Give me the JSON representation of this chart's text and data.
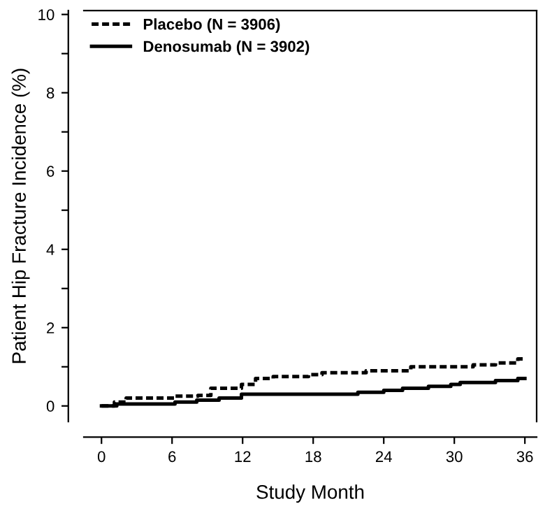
{
  "chart_data": {
    "type": "step",
    "xlabel": "Study Month",
    "ylabel": "Patient Hip Fracture Incidence (%)",
    "xlim": [
      -1.5,
      37
    ],
    "ylim": [
      -0.4,
      10.1
    ],
    "xticks": [
      0,
      6,
      12,
      18,
      24,
      30,
      36
    ],
    "yticks": [
      0,
      {
        "value": 1,
        "label": null
      },
      2,
      {
        "value": 3,
        "label": null
      },
      4,
      {
        "value": 5,
        "label": null
      },
      6,
      {
        "value": 7,
        "label": null
      },
      8,
      {
        "value": 9,
        "label": null
      },
      10
    ],
    "grid": false,
    "legend": "top left",
    "marker": "none",
    "series": [
      {
        "name": "Placebo (N = 3906)",
        "color": "#000000",
        "line_style": "dashed",
        "x": [
          0,
          1.1,
          2.1,
          6.25,
          8.2,
          9.3,
          11.9,
          13.1,
          14.6,
          17.6,
          18.75,
          22.5,
          26.3,
          31.6,
          33.5,
          35.4,
          36
        ],
        "values": [
          0,
          0.1,
          0.2,
          0.25,
          0.27,
          0.45,
          0.55,
          0.7,
          0.75,
          0.8,
          0.85,
          0.9,
          1.0,
          1.05,
          1.1,
          1.2,
          1.2
        ]
      },
      {
        "name": "Denosumab (N = 3902)",
        "color": "#000000",
        "line_style": "solid",
        "x": [
          0,
          1.3,
          6.25,
          8.1,
          10,
          11.9,
          21.8,
          24,
          25.6,
          27.8,
          29.7,
          30.5,
          33.5,
          35.4,
          36
        ],
        "values": [
          0,
          0.05,
          0.1,
          0.15,
          0.2,
          0.3,
          0.35,
          0.4,
          0.45,
          0.5,
          0.55,
          0.6,
          0.65,
          0.7,
          0.7
        ]
      }
    ]
  }
}
